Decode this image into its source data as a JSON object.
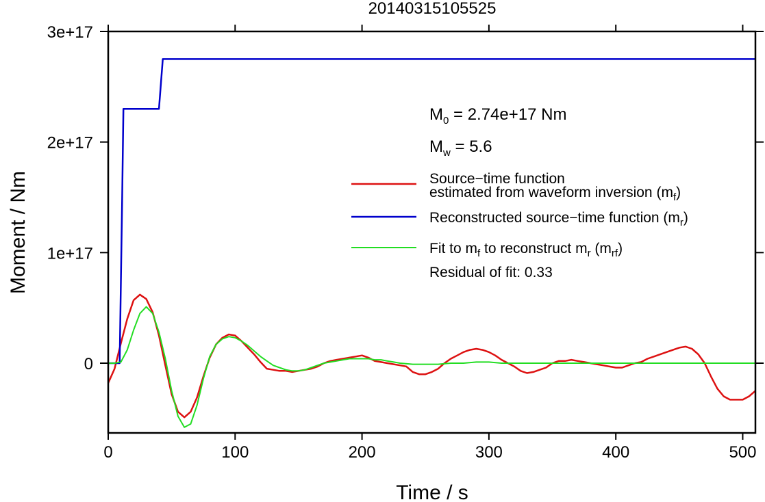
{
  "chart_data": {
    "type": "line",
    "title": "20140315105525",
    "xlabel": "Time / s",
    "ylabel": "Moment / Nm",
    "xlim": [
      0,
      510
    ],
    "ylim": [
      -6.5e+16,
      3e+17
    ],
    "x_ticks": [
      0,
      100,
      200,
      300,
      400,
      500
    ],
    "x_tick_labels": [
      "0",
      "100",
      "200",
      "300",
      "400",
      "500"
    ],
    "y_ticks": [
      0,
      1e+17,
      2e+17,
      3e+17
    ],
    "y_tick_labels": [
      "0",
      "1e+17",
      "2e+17",
      "3e+17"
    ],
    "grid": false,
    "legend_position": "right",
    "annotations": {
      "m0": {
        "base": "M",
        "sub": "0",
        "rest": " = 2.74e+17 Nm"
      },
      "mw": {
        "base": "M",
        "sub": "w",
        "rest": " = 5.6"
      },
      "residual": "Residual of fit: 0.33"
    },
    "legend": [
      {
        "lines": [
          {
            "text": "Source−time function"
          },
          {
            "text": "estimated from waveform inversion (m",
            "sub": "f",
            "end": ")"
          }
        ],
        "color": "#dd1111"
      },
      {
        "lines": [
          {
            "text": "Reconstructed source−time function (m",
            "sub": "r",
            "end": ")"
          }
        ],
        "color": "#0000cc"
      },
      {
        "lines": [
          {
            "text": "Fit to m",
            "sub": "f",
            "end": " to reconstruct m",
            "sub2": "r",
            "end2": " (m",
            "sub3": "rf",
            "end3": ")"
          }
        ],
        "color": "#22dd22"
      }
    ],
    "series": [
      {
        "key": "mf",
        "color": "#dd1111",
        "x": [
          0,
          5,
          10,
          15,
          20,
          25,
          30,
          35,
          40,
          45,
          50,
          55,
          60,
          65,
          70,
          75,
          80,
          85,
          90,
          95,
          100,
          105,
          110,
          115,
          120,
          125,
          130,
          135,
          140,
          145,
          150,
          155,
          160,
          165,
          170,
          175,
          180,
          185,
          190,
          195,
          200,
          205,
          210,
          215,
          220,
          225,
          230,
          235,
          240,
          245,
          250,
          255,
          260,
          265,
          270,
          275,
          280,
          285,
          290,
          295,
          300,
          305,
          310,
          315,
          320,
          325,
          330,
          335,
          340,
          345,
          350,
          355,
          360,
          365,
          370,
          375,
          380,
          385,
          390,
          395,
          400,
          405,
          410,
          415,
          420,
          425,
          430,
          435,
          440,
          445,
          450,
          455,
          460,
          465,
          470,
          475,
          480,
          485,
          490,
          495,
          500,
          505,
          510
        ],
        "y": [
          -1.8e+16,
          -5000000000000000.0,
          1.8e+16,
          4e+16,
          5.7e+16,
          6.2e+16,
          5.8e+16,
          4.6e+16,
          2.5e+16,
          -2000000000000000.0,
          -2.8e+16,
          -4.4e+16,
          -4.9e+16,
          -4.4e+16,
          -3.1e+16,
          -1.2e+16,
          5000000000000000.0,
          1.7e+16,
          2.3e+16,
          2.6e+16,
          2.5e+16,
          2e+16,
          1.4e+16,
          8000000000000000.0,
          1000000000000000.0,
          -5000000000000000.0,
          -6000000000000000.0,
          -7000000000000000.0,
          -7000000000000000.0,
          -8000000000000000.0,
          -7000000000000000.0,
          -6000000000000000.0,
          -5000000000000000.0,
          -3000000000000000.0,
          0,
          2000000000000000.0,
          3000000000000000.0,
          4000000000000000.0,
          5000000000000000.0,
          6000000000000000.0,
          7000000000000000.0,
          5000000000000000.0,
          2000000000000000.0,
          1000000000000000.0,
          0,
          -1000000000000000.0,
          -2000000000000000.0,
          -3000000000000000.0,
          -8000000000000000.0,
          -1e+16,
          -1e+16,
          -8000000000000000.0,
          -5000000000000000.0,
          0,
          4000000000000000.0,
          7000000000000000.0,
          1e+16,
          1.2e+16,
          1.3e+16,
          1.2e+16,
          1e+16,
          7000000000000000.0,
          3000000000000000.0,
          0,
          -3000000000000000.0,
          -7000000000000000.0,
          -9000000000000000.0,
          -8000000000000000.0,
          -6000000000000000.0,
          -4000000000000000.0,
          0,
          2000000000000000.0,
          2000000000000000.0,
          3000000000000000.0,
          2000000000000000.0,
          1000000000000000.0,
          0,
          -1000000000000000.0,
          -2000000000000000.0,
          -3000000000000000.0,
          -4000000000000000.0,
          -4000000000000000.0,
          -2000000000000000.0,
          0,
          1000000000000000.0,
          4000000000000000.0,
          6000000000000000.0,
          8000000000000000.0,
          1e+16,
          1.2e+16,
          1.4e+16,
          1.5e+16,
          1.3e+16,
          8000000000000000.0,
          0,
          -1.2e+16,
          -2.3e+16,
          -3e+16,
          -3.3e+16,
          -3.3e+16,
          -3.3e+16,
          -3e+16,
          -2.5e+16
        ]
      },
      {
        "key": "mr",
        "color": "#0000cc",
        "x": [
          0,
          9,
          11,
          12,
          40,
          43,
          44,
          510
        ],
        "y": [
          0,
          0,
          1.5e+17,
          2.3e+17,
          2.3e+17,
          2.75e+17,
          2.75e+17,
          2.75e+17
        ]
      },
      {
        "key": "mrf",
        "color": "#22dd22",
        "x": [
          0,
          5,
          10,
          15,
          20,
          25,
          30,
          35,
          40,
          45,
          50,
          55,
          60,
          65,
          70,
          75,
          80,
          85,
          90,
          95,
          100,
          105,
          110,
          115,
          120,
          125,
          130,
          135,
          140,
          145,
          150,
          155,
          160,
          165,
          170,
          175,
          180,
          185,
          190,
          195,
          200,
          205,
          210,
          215,
          220,
          225,
          230,
          240,
          250,
          260,
          270,
          280,
          290,
          300,
          310,
          320,
          330,
          340,
          350,
          360,
          370,
          380,
          390,
          400,
          420,
          440,
          460,
          480,
          500,
          510
        ],
        "y": [
          0,
          0,
          1000000000000000.0,
          1.2e+16,
          3e+16,
          4.5e+16,
          5.1e+16,
          4.5e+16,
          2.8e+16,
          4000000000000000.0,
          -2.5e+16,
          -4.8e+16,
          -5.8e+16,
          -5.5e+16,
          -3.8e+16,
          -1.4e+16,
          6000000000000000.0,
          1.7e+16,
          2.2e+16,
          2.4e+16,
          2.3e+16,
          2e+16,
          1.6e+16,
          1.1e+16,
          6000000000000000.0,
          2000000000000000.0,
          -2000000000000000.0,
          -4000000000000000.0,
          -6000000000000000.0,
          -7000000000000000.0,
          -7000000000000000.0,
          -6000000000000000.0,
          -4000000000000000.0,
          -2000000000000000.0,
          0,
          1000000000000000.0,
          2000000000000000.0,
          3000000000000000.0,
          4000000000000000.0,
          4000000000000000.0,
          4000000000000000.0,
          4000000000000000.0,
          3000000000000000.0,
          3000000000000000.0,
          2000000000000000.0,
          1000000000000000.0,
          0,
          -1000000000000000.0,
          -1000000000000000.0,
          -1000000000000000.0,
          0,
          0,
          1000000000000000.0,
          1000000000000000.0,
          0,
          0,
          0,
          0,
          0,
          0,
          0,
          0,
          0,
          0,
          0,
          0,
          0,
          0,
          0,
          0
        ]
      }
    ]
  }
}
